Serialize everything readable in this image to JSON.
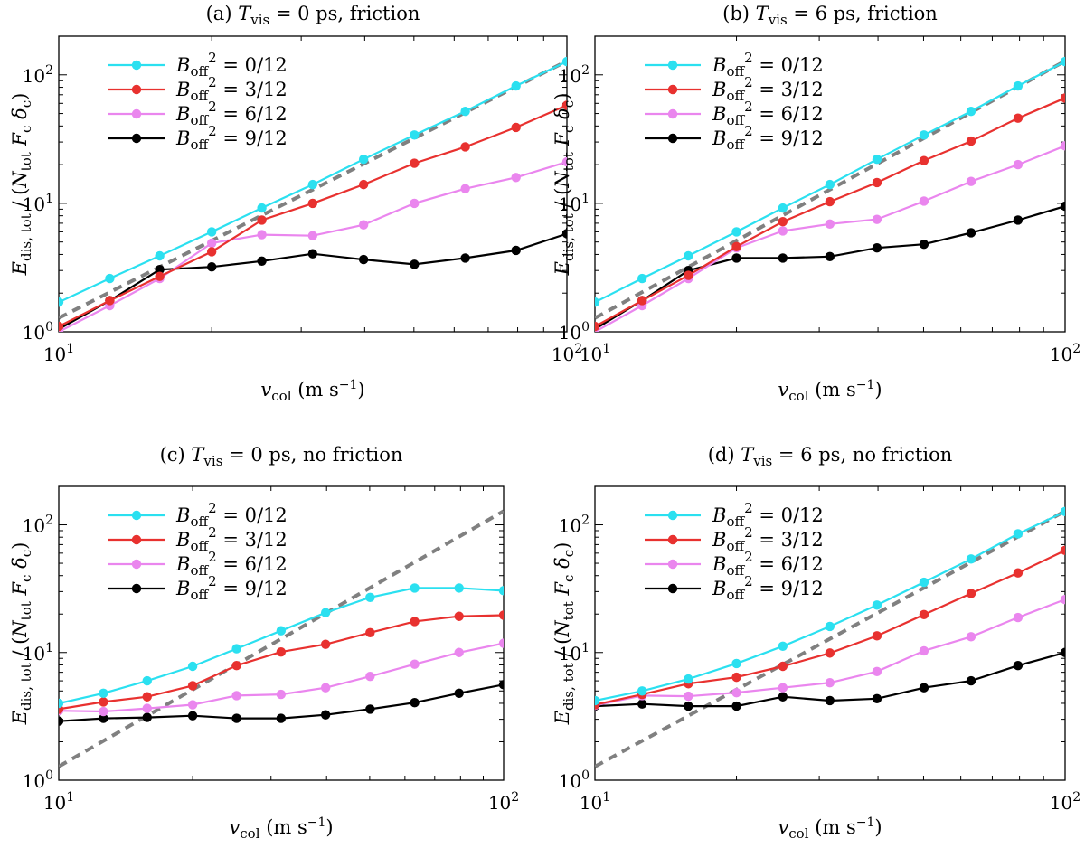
{
  "chart_data": [
    {
      "type": "line",
      "panel": "a",
      "title": "(a) T_vis = 0 ps, friction",
      "title_parts": {
        "prefix": "(a) ",
        "var": "T",
        "sub": "vis",
        "suffix": " = 0 ps, friction"
      },
      "xlabel_parts": {
        "var": "v",
        "sub": "col",
        "unit": " (m s",
        "unit_sup": "−1",
        "close": ")"
      },
      "ylabel_parts": {
        "var": "E",
        "sub": "dis, tot",
        "mid": " / (",
        "n": "N",
        "n_sub": "tot",
        "f": " F",
        "f_sub": "c",
        "d": " δ",
        "d_sub": "c",
        "close": ")"
      },
      "x_scale": "log",
      "y_scale": "log",
      "xlim": [
        10,
        100
      ],
      "ylim": [
        1,
        200
      ],
      "x_ticks": [
        {
          "base": "10",
          "exp": "1"
        },
        {
          "base": "10",
          "exp": "2"
        }
      ],
      "y_ticks": [
        {
          "base": "10",
          "exp": "0"
        },
        {
          "base": "10",
          "exp": "1"
        },
        {
          "base": "10",
          "exp": "2"
        }
      ],
      "legend_position": "top-left",
      "x": [
        10,
        12.6,
        15.8,
        20,
        25.1,
        31.6,
        39.8,
        50.1,
        63.1,
        79.4,
        100
      ],
      "reference_line": {
        "style": "dashed",
        "color": "#808080",
        "x": [
          10,
          100
        ],
        "y": [
          1.28,
          128
        ]
      },
      "series": [
        {
          "name": "B_off^2 = 0/12",
          "label": {
            "var": "B",
            "sub": "off",
            "sup": "2",
            "value": " = 0/12"
          },
          "color": "#2be0f0",
          "values": [
            1.7,
            2.6,
            3.9,
            6.0,
            9.2,
            14.0,
            22.0,
            34.0,
            52.0,
            82.0,
            127.0
          ]
        },
        {
          "name": "B_off^2 = 3/12",
          "label": {
            "var": "B",
            "sub": "off",
            "sup": "2",
            "value": " = 3/12"
          },
          "color": "#e8312f",
          "values": [
            1.1,
            1.75,
            2.7,
            4.2,
            7.4,
            10.0,
            14.0,
            20.5,
            27.5,
            39.0,
            58.0
          ]
        },
        {
          "name": "B_off^2 = 6/12",
          "label": {
            "var": "B",
            "sub": "off",
            "sup": "2",
            "value": " = 6/12"
          },
          "color": "#ea86ee",
          "values": [
            1.0,
            1.6,
            2.6,
            4.9,
            5.7,
            5.6,
            6.8,
            10.0,
            13.0,
            15.9,
            21.0
          ]
        },
        {
          "name": "B_off^2 = 9/12",
          "label": {
            "var": "B",
            "sub": "off",
            "sup": "2",
            "value": " = 9/12"
          },
          "color": "#000000",
          "values": [
            1.05,
            1.75,
            3.05,
            3.2,
            3.55,
            4.05,
            3.65,
            3.35,
            3.75,
            4.3,
            5.8
          ]
        }
      ]
    },
    {
      "type": "line",
      "panel": "b",
      "title": "(b) T_vis = 6 ps, friction",
      "title_parts": {
        "prefix": "(b) ",
        "var": "T",
        "sub": "vis",
        "suffix": " = 6 ps, friction"
      },
      "xlabel_parts": {
        "var": "v",
        "sub": "col",
        "unit": " (m s",
        "unit_sup": "−1",
        "close": ")"
      },
      "ylabel_parts": {
        "var": "E",
        "sub": "dis, tot",
        "mid": " / (",
        "n": "N",
        "n_sub": "tot",
        "f": " F",
        "f_sub": "c",
        "d": " δ",
        "d_sub": "c",
        "close": ")"
      },
      "x_scale": "log",
      "y_scale": "log",
      "xlim": [
        10,
        100
      ],
      "ylim": [
        1,
        200
      ],
      "x_ticks": [
        {
          "base": "10",
          "exp": "1"
        },
        {
          "base": "10",
          "exp": "2"
        }
      ],
      "y_ticks": [
        {
          "base": "10",
          "exp": "0"
        },
        {
          "base": "10",
          "exp": "1"
        },
        {
          "base": "10",
          "exp": "2"
        }
      ],
      "legend_position": "top-left",
      "x": [
        10,
        12.6,
        15.8,
        20,
        25.1,
        31.6,
        39.8,
        50.1,
        63.1,
        79.4,
        100
      ],
      "reference_line": {
        "style": "dashed",
        "color": "#808080",
        "x": [
          10,
          100
        ],
        "y": [
          1.28,
          128
        ]
      },
      "series": [
        {
          "name": "B_off^2 = 0/12",
          "label": {
            "var": "B",
            "sub": "off",
            "sup": "2",
            "value": " = 0/12"
          },
          "color": "#2be0f0",
          "values": [
            1.7,
            2.6,
            3.9,
            6.0,
            9.2,
            14.0,
            22.0,
            34.0,
            52.0,
            82.0,
            127.0
          ]
        },
        {
          "name": "B_off^2 = 3/12",
          "label": {
            "var": "B",
            "sub": "off",
            "sup": "2",
            "value": " = 3/12"
          },
          "color": "#e8312f",
          "values": [
            1.1,
            1.75,
            2.75,
            4.6,
            7.2,
            10.3,
            14.5,
            21.5,
            30.5,
            46.0,
            66.0
          ]
        },
        {
          "name": "B_off^2 = 6/12",
          "label": {
            "var": "B",
            "sub": "off",
            "sup": "2",
            "value": " = 6/12"
          },
          "color": "#ea86ee",
          "values": [
            1.0,
            1.6,
            2.6,
            4.5,
            6.1,
            6.9,
            7.5,
            10.4,
            14.8,
            20.0,
            28.0
          ]
        },
        {
          "name": "B_off^2 = 9/12",
          "label": {
            "var": "B",
            "sub": "off",
            "sup": "2",
            "value": " = 9/12"
          },
          "color": "#000000",
          "values": [
            1.05,
            1.75,
            3.0,
            3.75,
            3.75,
            3.85,
            4.5,
            4.8,
            5.9,
            7.4,
            9.5
          ]
        }
      ]
    },
    {
      "type": "line",
      "panel": "c",
      "title": "(c) T_vis = 0 ps, no friction",
      "title_parts": {
        "prefix": "(c) ",
        "var": "T",
        "sub": "vis",
        "suffix": " = 0 ps, no friction"
      },
      "xlabel_parts": {
        "var": "v",
        "sub": "col",
        "unit": " (m s",
        "unit_sup": "−1",
        "close": ")"
      },
      "ylabel_parts": {
        "var": "E",
        "sub": "dis, tot",
        "mid": " / (",
        "n": "N",
        "n_sub": "tot",
        "f": " F",
        "f_sub": "c",
        "d": " δ",
        "d_sub": "c",
        "close": ")"
      },
      "x_scale": "log",
      "y_scale": "log",
      "xlim": [
        10,
        100
      ],
      "ylim": [
        1,
        200
      ],
      "x_ticks": [
        {
          "base": "10",
          "exp": "1"
        },
        {
          "base": "10",
          "exp": "2"
        }
      ],
      "y_ticks": [
        {
          "base": "10",
          "exp": "0"
        },
        {
          "base": "10",
          "exp": "1"
        },
        {
          "base": "10",
          "exp": "2"
        }
      ],
      "legend_position": "top-left",
      "x": [
        10,
        12.6,
        15.8,
        20,
        25.1,
        31.6,
        39.8,
        50.1,
        63.1,
        79.4,
        100
      ],
      "reference_line": {
        "style": "dashed",
        "color": "#808080",
        "x": [
          10,
          100
        ],
        "y": [
          1.28,
          128
        ]
      },
      "series": [
        {
          "name": "B_off^2 = 0/12",
          "label": {
            "var": "B",
            "sub": "off",
            "sup": "2",
            "value": " = 0/12"
          },
          "color": "#2be0f0",
          "values": [
            4.0,
            4.8,
            6.0,
            7.8,
            10.7,
            14.8,
            20.5,
            27.0,
            32.0,
            32.0,
            30.5
          ]
        },
        {
          "name": "B_off^2 = 3/12",
          "label": {
            "var": "B",
            "sub": "off",
            "sup": "2",
            "value": " = 3/12"
          },
          "color": "#e8312f",
          "values": [
            3.6,
            4.1,
            4.5,
            5.5,
            7.9,
            10.1,
            11.6,
            14.3,
            17.5,
            19.2,
            19.6
          ]
        },
        {
          "name": "B_off^2 = 6/12",
          "label": {
            "var": "B",
            "sub": "off",
            "sup": "2",
            "value": " = 6/12"
          },
          "color": "#ea86ee",
          "values": [
            3.5,
            3.45,
            3.65,
            3.9,
            4.6,
            4.7,
            5.3,
            6.5,
            8.1,
            10.0,
            11.8
          ]
        },
        {
          "name": "B_off^2 = 9/12",
          "label": {
            "var": "B",
            "sub": "off",
            "sup": "2",
            "value": " = 9/12"
          },
          "color": "#000000",
          "values": [
            2.9,
            3.05,
            3.1,
            3.2,
            3.05,
            3.05,
            3.25,
            3.6,
            4.05,
            4.8,
            5.6
          ]
        }
      ]
    },
    {
      "type": "line",
      "panel": "d",
      "title": "(d) T_vis = 6 ps, no friction",
      "title_parts": {
        "prefix": "(d) ",
        "var": "T",
        "sub": "vis",
        "suffix": " = 6 ps, no friction"
      },
      "xlabel_parts": {
        "var": "v",
        "sub": "col",
        "unit": " (m s",
        "unit_sup": "−1",
        "close": ")"
      },
      "ylabel_parts": {
        "var": "E",
        "sub": "dis, tot",
        "mid": " / (",
        "n": "N",
        "n_sub": "tot",
        "f": " F",
        "f_sub": "c",
        "d": " δ",
        "d_sub": "c",
        "close": ")"
      },
      "x_scale": "log",
      "y_scale": "log",
      "xlim": [
        10,
        100
      ],
      "ylim": [
        1,
        200
      ],
      "x_ticks": [
        {
          "base": "10",
          "exp": "1"
        },
        {
          "base": "10",
          "exp": "2"
        }
      ],
      "y_ticks": [
        {
          "base": "10",
          "exp": "0"
        },
        {
          "base": "10",
          "exp": "1"
        },
        {
          "base": "10",
          "exp": "2"
        }
      ],
      "legend_position": "top-left",
      "x": [
        10,
        12.6,
        15.8,
        20,
        25.1,
        31.6,
        39.8,
        50.1,
        63.1,
        79.4,
        100
      ],
      "reference_line": {
        "style": "dashed",
        "color": "#808080",
        "x": [
          10,
          100
        ],
        "y": [
          1.28,
          128
        ]
      },
      "series": [
        {
          "name": "B_off^2 = 0/12",
          "label": {
            "var": "B",
            "sub": "off",
            "sup": "2",
            "value": " = 0/12"
          },
          "color": "#2be0f0",
          "values": [
            4.2,
            5.0,
            6.2,
            8.2,
            11.2,
            16.0,
            23.5,
            35.5,
            54.0,
            85.0,
            127.0
          ]
        },
        {
          "name": "B_off^2 = 3/12",
          "label": {
            "var": "B",
            "sub": "off",
            "sup": "2",
            "value": " = 3/12"
          },
          "color": "#e8312f",
          "values": [
            3.9,
            4.7,
            5.7,
            6.4,
            7.8,
            9.9,
            13.5,
            19.8,
            29.0,
            42.0,
            63.0
          ]
        },
        {
          "name": "B_off^2 = 6/12",
          "label": {
            "var": "B",
            "sub": "off",
            "sup": "2",
            "value": " = 6/12"
          },
          "color": "#ea86ee",
          "values": [
            3.85,
            4.6,
            4.55,
            4.85,
            5.3,
            5.8,
            7.1,
            10.3,
            13.3,
            18.8,
            26.0
          ]
        },
        {
          "name": "B_off^2 = 9/12",
          "label": {
            "var": "B",
            "sub": "off",
            "sup": "2",
            "value": " = 9/12"
          },
          "color": "#000000",
          "values": [
            3.8,
            3.95,
            3.8,
            3.8,
            4.5,
            4.2,
            4.35,
            5.3,
            6.0,
            7.9,
            10.0
          ]
        }
      ]
    }
  ]
}
